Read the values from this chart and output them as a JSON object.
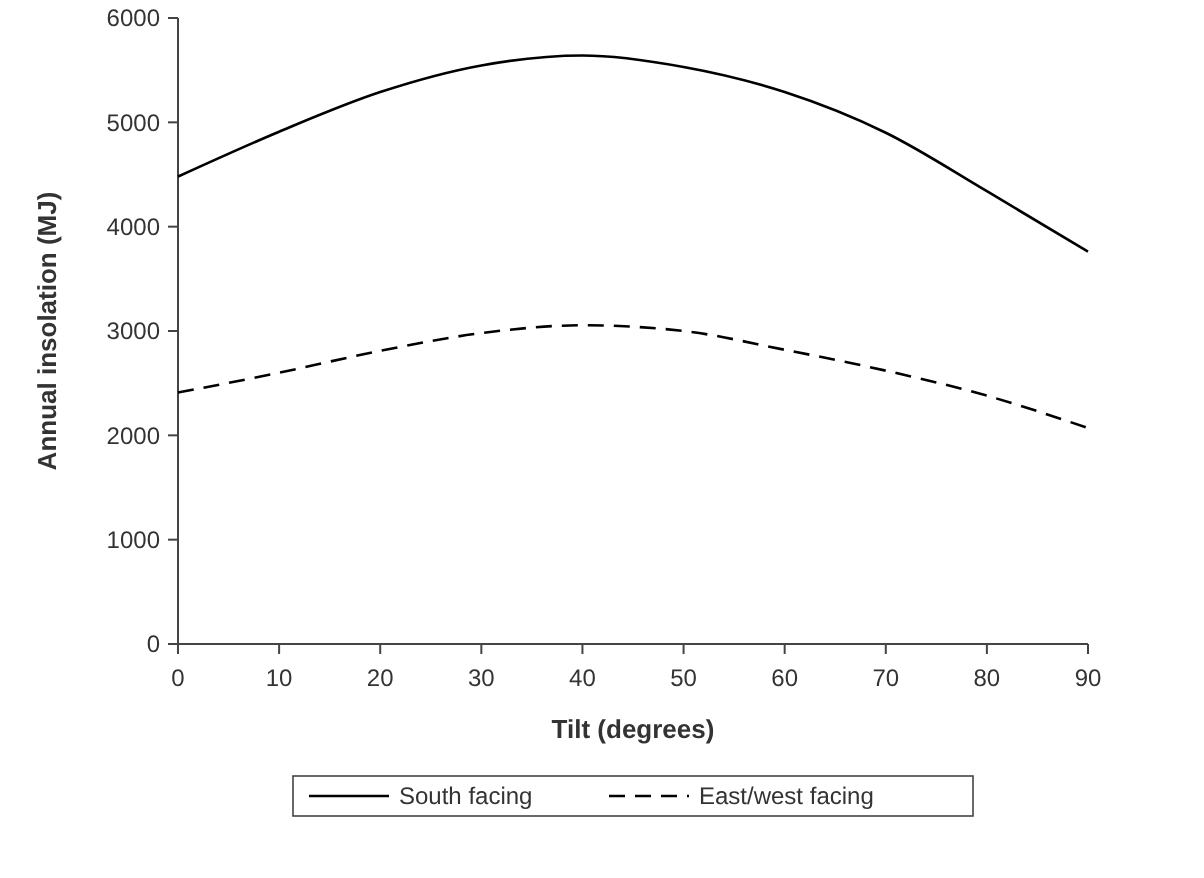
{
  "chart_data": {
    "type": "line",
    "xlabel": "Tilt (degrees)",
    "ylabel": "Annual insolation (MJ)",
    "x": [
      0,
      10,
      20,
      30,
      40,
      50,
      60,
      70,
      80,
      90
    ],
    "series": [
      {
        "name": "South facing",
        "color": "#000000",
        "line_style": "solid",
        "values": [
          4480,
          4910,
          5290,
          5545,
          5640,
          5530,
          5290,
          4900,
          4340,
          3760
        ]
      },
      {
        "name": "East/west facing",
        "color": "#000000",
        "line_style": "dashed",
        "values": [
          2410,
          2600,
          2810,
          2980,
          3055,
          3000,
          2820,
          2620,
          2380,
          2070
        ]
      }
    ],
    "xlim": [
      0,
      90
    ],
    "xticks": [
      0,
      10,
      20,
      30,
      40,
      50,
      60,
      70,
      80,
      90
    ],
    "ylim": [
      0,
      6000
    ],
    "yticks": [
      0,
      1000,
      2000,
      3000,
      4000,
      5000,
      6000
    ],
    "grid": false,
    "legend": "bottom",
    "marker": "none"
  }
}
